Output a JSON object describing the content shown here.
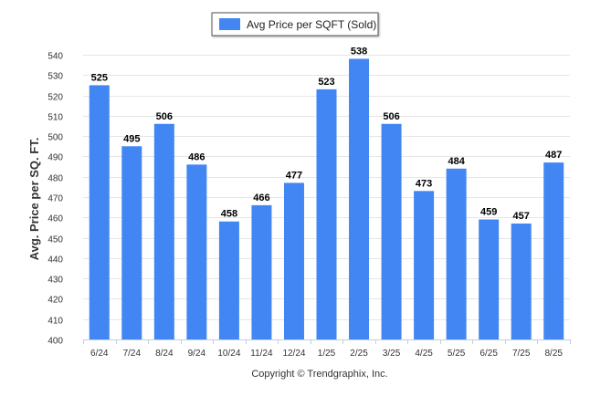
{
  "chart_data": {
    "type": "bar",
    "categories": [
      "6/24",
      "7/24",
      "8/24",
      "9/24",
      "10/24",
      "11/24",
      "12/24",
      "1/25",
      "2/25",
      "3/25",
      "4/25",
      "5/25",
      "6/25",
      "7/25",
      "8/25"
    ],
    "series": [
      {
        "name": "Avg Price per SQFT (Sold)",
        "values": [
          525,
          495,
          506,
          486,
          458,
          466,
          477,
          523,
          538,
          506,
          473,
          484,
          459,
          457,
          487
        ]
      }
    ],
    "xlabel": "",
    "ylabel": "Avg. Price per SQ. FT.",
    "ylim": [
      400,
      540
    ],
    "yticks": [
      400,
      410,
      420,
      430,
      440,
      450,
      460,
      470,
      480,
      490,
      500,
      510,
      520,
      530,
      540
    ],
    "grid": true,
    "legend_position": "top-center",
    "data_labels": true,
    "bar_color": "#4286f4"
  },
  "footer": {
    "copyright": "Copyright © Trendgraphix, Inc."
  }
}
